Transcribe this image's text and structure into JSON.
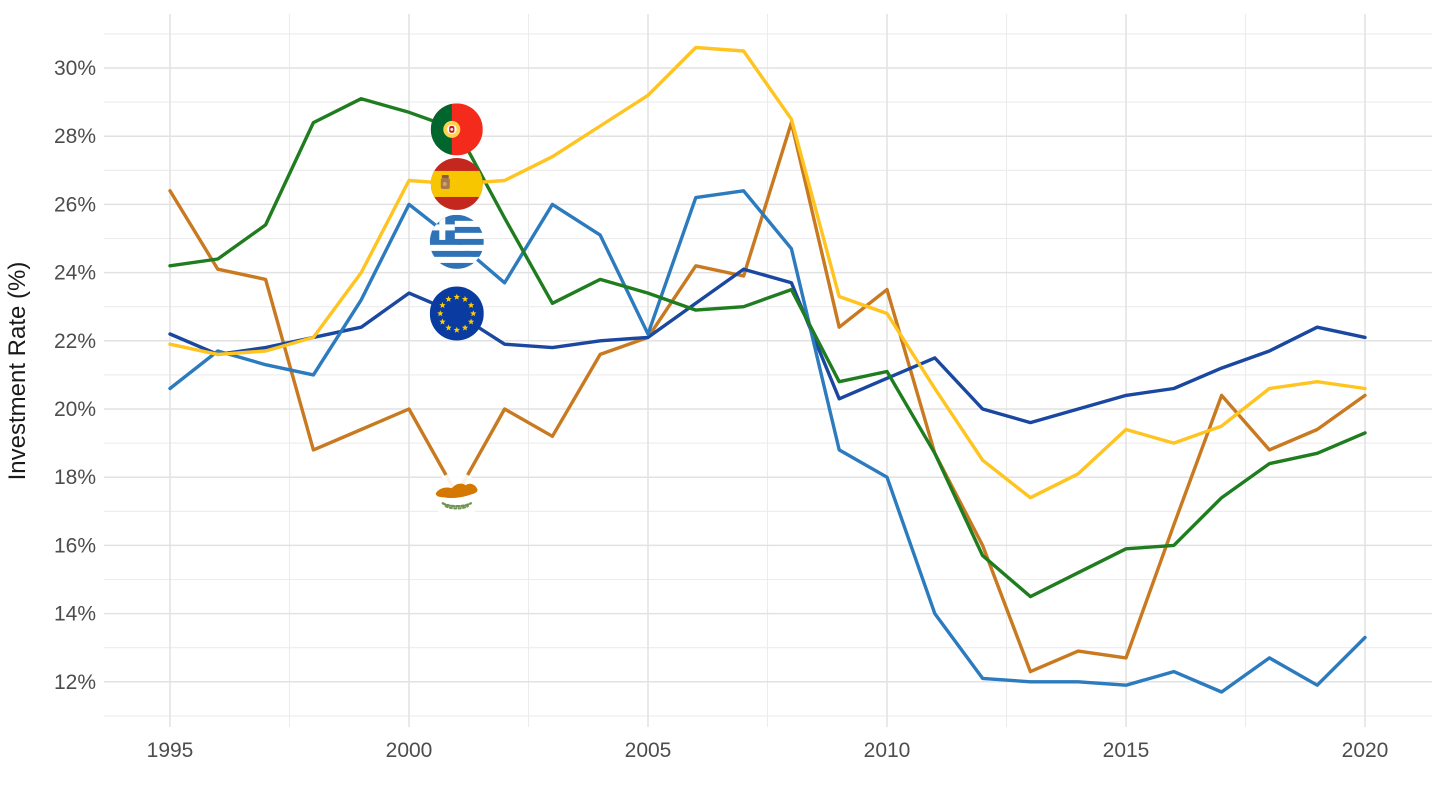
{
  "chart_data": {
    "type": "line",
    "title": "",
    "xlabel": "",
    "ylabel": "Investment Rate (%)",
    "x": [
      1995,
      1996,
      1997,
      1998,
      1999,
      2000,
      2001,
      2002,
      2003,
      2004,
      2005,
      2006,
      2007,
      2008,
      2009,
      2010,
      2011,
      2012,
      2013,
      2014,
      2015,
      2016,
      2017,
      2018,
      2019,
      2020
    ],
    "x_tick_labels": [
      "1995",
      "2000",
      "2005",
      "2010",
      "2015",
      "2020"
    ],
    "x_tick_years": [
      1995,
      2000,
      2005,
      2010,
      2015,
      2020
    ],
    "y_tick_labels": [
      "12%",
      "14%",
      "16%",
      "18%",
      "20%",
      "22%",
      "24%",
      "26%",
      "28%",
      "30%"
    ],
    "y_tick_values": [
      12,
      14,
      16,
      18,
      20,
      22,
      24,
      26,
      28,
      30
    ],
    "ylim": [
      11.6,
      31.6
    ],
    "xlim": [
      1993.6,
      2021.4
    ],
    "grid": "major and minor gridlines on, light gray, white background",
    "legend_position": "none (flag markers on lines at year 2001)",
    "flag_marker_year": 2001,
    "series": [
      {
        "name": "Cyprus",
        "color": "#c9791f",
        "flag_icon": "cyprus-flag-icon",
        "values": [
          26.4,
          24.1,
          23.8,
          18.8,
          19.4,
          20.0,
          17.5,
          20.0,
          19.2,
          21.6,
          22.1,
          24.2,
          23.9,
          28.4,
          22.4,
          23.5,
          18.7,
          16.0,
          12.3,
          12.9,
          12.7,
          16.6,
          20.4,
          18.8,
          19.4,
          20.4
        ]
      },
      {
        "name": "European Union",
        "color": "#1a47a0",
        "flag_icon": "eu-flag-icon",
        "values": [
          22.2,
          21.6,
          21.8,
          22.1,
          22.4,
          23.4,
          22.8,
          21.9,
          21.8,
          22.0,
          22.1,
          23.1,
          24.1,
          23.7,
          20.3,
          20.9,
          21.5,
          20.0,
          19.6,
          20.0,
          20.4,
          20.6,
          21.2,
          21.7,
          22.4,
          22.1
        ]
      },
      {
        "name": "Greece",
        "color": "#2b7bbe",
        "flag_icon": "greece-flag-icon",
        "values": [
          20.6,
          21.7,
          21.3,
          21.0,
          23.2,
          26.0,
          24.9,
          23.7,
          26.0,
          25.1,
          22.2,
          26.2,
          26.4,
          24.7,
          18.8,
          18.0,
          14.0,
          12.1,
          12.0,
          12.0,
          11.9,
          12.3,
          11.7,
          12.7,
          11.9,
          13.3
        ]
      },
      {
        "name": "Portugal",
        "color": "#1f7d1f",
        "flag_icon": "portugal-flag-icon",
        "values": [
          24.2,
          24.4,
          25.4,
          28.4,
          29.1,
          28.7,
          28.2,
          25.6,
          23.1,
          23.8,
          23.4,
          22.9,
          23.0,
          23.5,
          20.8,
          21.1,
          18.7,
          15.7,
          14.5,
          15.2,
          15.9,
          16.0,
          17.4,
          18.4,
          18.7,
          19.3
        ]
      },
      {
        "name": "Spain",
        "color": "#ffc41f",
        "flag_icon": "spain-flag-icon",
        "values": [
          21.9,
          21.6,
          21.7,
          22.1,
          24.0,
          26.7,
          26.6,
          26.7,
          27.4,
          28.3,
          29.2,
          30.6,
          30.5,
          28.5,
          23.3,
          22.8,
          20.6,
          18.5,
          17.4,
          18.1,
          19.4,
          19.0,
          19.5,
          20.6,
          20.8,
          20.6
        ]
      }
    ]
  }
}
